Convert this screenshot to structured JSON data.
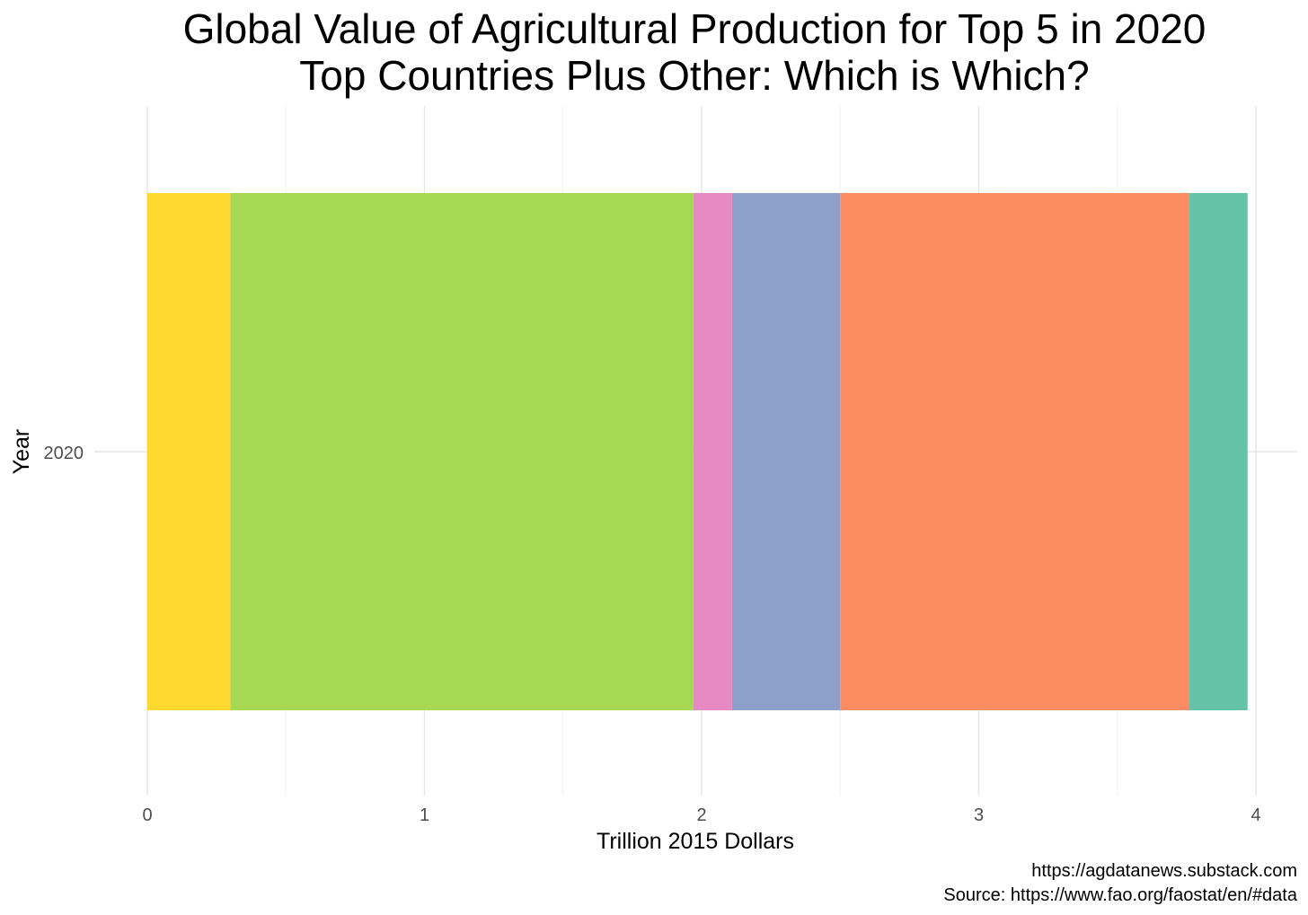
{
  "chart_data": {
    "type": "bar",
    "orientation": "horizontal",
    "stacked": true,
    "title": [
      "Global Value of Agricultural Production for Top 5 in 2020",
      "Top Countries Plus Other: Which is Which?"
    ],
    "xlabel": "Trillion 2015 Dollars",
    "ylabel": "Year",
    "categories": [
      "2020"
    ],
    "xlim": [
      0,
      4
    ],
    "x_ticks": [
      0,
      1,
      2,
      3,
      4
    ],
    "x_tick_labels": [
      "0",
      "1",
      "2",
      "3",
      "4"
    ],
    "grid": true,
    "legend": "none",
    "segments": [
      {
        "value": 0.3,
        "color": "#FFD92F"
      },
      {
        "value": 1.67,
        "color": "#A6D854"
      },
      {
        "value": 0.14,
        "color": "#E78AC3"
      },
      {
        "value": 0.39,
        "color": "#8DA0CB"
      },
      {
        "value": 1.26,
        "color": "#FC8D62"
      },
      {
        "value": 0.21,
        "color": "#66C2A5"
      }
    ],
    "caption": [
      "https://agdatanews.substack.com",
      "Source: https://www.fao.org/faostat/en/#data"
    ]
  },
  "colors": {
    "grid_major": "#E5E5E5",
    "grid_minor": "#F0F0F0",
    "tick_label": "#4D4D4D"
  }
}
